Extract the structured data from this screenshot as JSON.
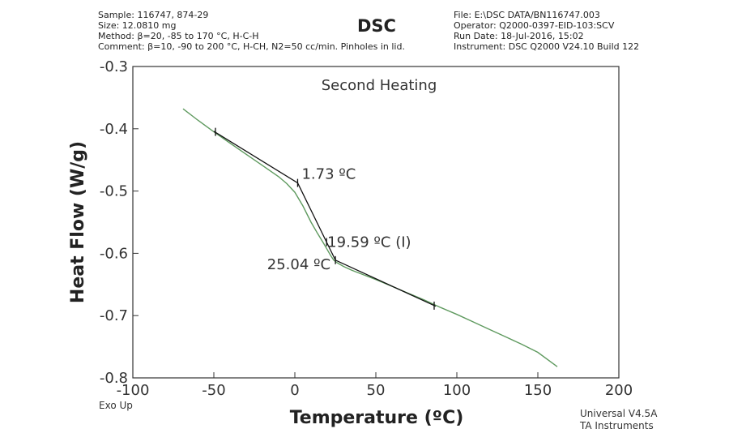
{
  "header": {
    "left": [
      "Sample: 116747, 874-29",
      "Size: 12.0810 mg",
      "Method: β=20, -85 to 170 °C, H-C-H",
      "Comment: β=10, -90 to 200 °C, H-CH, N2=50 cc/min. Pinholes in lid."
    ],
    "right": [
      "File: E:\\DSC DATA/BN116747.003",
      "Operator: Q2000-0397-EID-103:SCV",
      "Run Date: 18-Jul-2016, 15:02",
      "Instrument: DSC Q2000 V24.10 Build 122"
    ]
  },
  "footer": {
    "exo": "Exo Up",
    "software": "Universal V4.5A",
    "vendor": "TA Instruments"
  },
  "chart_data": {
    "type": "line",
    "title": "DSC",
    "subtitle": "Second Heating",
    "xlabel": "Temperature (ºC)",
    "ylabel": "Heat Flow (W/g)",
    "xlim": [
      -100,
      200
    ],
    "ylim": [
      -0.8,
      -0.3
    ],
    "xticks": [
      -100,
      -50,
      0,
      50,
      100,
      150,
      200
    ],
    "yticks": [
      -0.3,
      -0.4,
      -0.5,
      -0.6,
      -0.7,
      -0.8
    ],
    "xtick_labels": [
      "-100",
      "-50",
      "0",
      "50",
      "100",
      "150",
      "200"
    ],
    "ytick_labels": [
      "-0.3",
      "-0.4",
      "-0.5",
      "-0.6",
      "-0.7",
      "-0.8"
    ],
    "grid": false,
    "colors": {
      "data": "#5f9a5f",
      "tangent": "#111111"
    },
    "series": [
      {
        "role": "heat-flow-curve",
        "x": [
          -69,
          -60,
          -50,
          -40,
          -30,
          -20,
          -10,
          -5,
          0,
          5,
          10,
          14,
          18,
          20,
          22,
          24,
          26,
          30,
          35,
          40,
          50,
          60,
          70,
          80,
          90,
          100,
          110,
          120,
          130,
          140,
          150,
          162
        ],
        "y": [
          -0.368,
          -0.386,
          -0.405,
          -0.423,
          -0.441,
          -0.459,
          -0.477,
          -0.488,
          -0.502,
          -0.524,
          -0.55,
          -0.568,
          -0.585,
          -0.594,
          -0.603,
          -0.611,
          -0.615,
          -0.621,
          -0.627,
          -0.632,
          -0.642,
          -0.653,
          -0.664,
          -0.675,
          -0.687,
          -0.698,
          -0.71,
          -0.722,
          -0.734,
          -0.746,
          -0.759,
          -0.782
        ]
      },
      {
        "role": "tangent-lines",
        "x": [
          -50,
          1.73,
          19.59,
          25.04,
          87
        ],
        "y": [
          -0.404,
          -0.487,
          -0.582,
          -0.611,
          -0.685
        ]
      }
    ],
    "tick_marks": [
      {
        "x": -49,
        "y": -0.405
      },
      {
        "x": 1.73,
        "y": -0.487
      },
      {
        "x": 19.59,
        "y": -0.582
      },
      {
        "x": 25.04,
        "y": -0.611
      },
      {
        "x": 86,
        "y": -0.684
      }
    ],
    "annotations": [
      {
        "text": "1.73 ºC",
        "x": 1.73,
        "y": -0.487
      },
      {
        "text": "19.59 ºC (I)",
        "x": 19.59,
        "y": -0.582
      },
      {
        "text": "25.04 ºC",
        "x": 25.04,
        "y": -0.611
      }
    ]
  }
}
